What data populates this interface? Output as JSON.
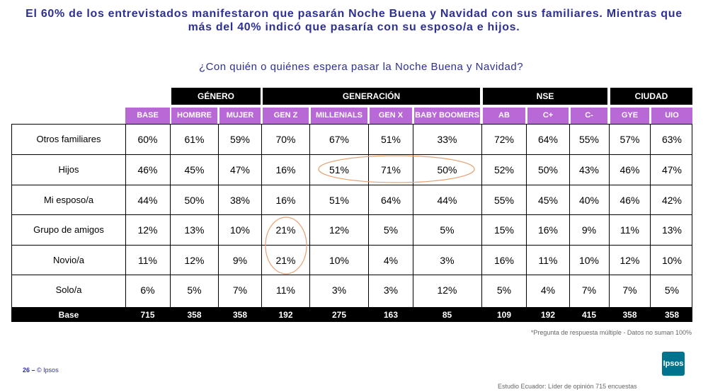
{
  "title": "El 60% de los entrevistados manifestaron que pasarán Noche Buena y Navidad con sus familiares. Mientras que más del 40% indicó que pasaría con su esposo/a e hijos.",
  "question": "¿Con quién o quiénes espera pasar la Noche Buena y Navidad?",
  "groups": [
    "GÉNERO",
    "GENERACIÓN",
    "NSE",
    "CIUDAD"
  ],
  "columns": [
    "BASE",
    "HOMBRE",
    "MUJER",
    "GEN Z",
    "MILLENIALS",
    "GEN X",
    "BABY BOOMERS",
    "AB",
    "C+",
    "C-",
    "GYE",
    "UIO"
  ],
  "rows": [
    {
      "label": "Otros familiares",
      "values": [
        "60%",
        "61%",
        "59%",
        "70%",
        "67%",
        "51%",
        "33%",
        "72%",
        "64%",
        "55%",
        "57%",
        "63%"
      ]
    },
    {
      "label": "Hijos",
      "values": [
        "46%",
        "45%",
        "47%",
        "16%",
        "51%",
        "71%",
        "50%",
        "52%",
        "50%",
        "43%",
        "46%",
        "47%"
      ]
    },
    {
      "label": "Mi esposo/a",
      "values": [
        "44%",
        "50%",
        "38%",
        "16%",
        "51%",
        "64%",
        "44%",
        "55%",
        "45%",
        "40%",
        "46%",
        "42%"
      ]
    },
    {
      "label": "Grupo de amigos",
      "values": [
        "12%",
        "13%",
        "10%",
        "21%",
        "12%",
        "5%",
        "5%",
        "15%",
        "16%",
        "9%",
        "11%",
        "13%"
      ]
    },
    {
      "label": "Novio/a",
      "values": [
        "11%",
        "12%",
        "9%",
        "21%",
        "10%",
        "4%",
        "3%",
        "16%",
        "11%",
        "10%",
        "12%",
        "10%"
      ]
    },
    {
      "label": "Solo/a",
      "values": [
        "6%",
        "5%",
        "7%",
        "11%",
        "3%",
        "3%",
        "12%",
        "5%",
        "4%",
        "7%",
        "7%",
        "5%"
      ]
    }
  ],
  "base_row": {
    "label": "Base",
    "values": [
      "715",
      "358",
      "358",
      "192",
      "275",
      "163",
      "85",
      "109",
      "192",
      "415",
      "358",
      "358"
    ]
  },
  "note": "*Pregunta de respuesta múltiple - Datos no suman 100%",
  "footer": {
    "page": "26 –",
    "copyright": "© Ipsos"
  },
  "study": "Estudio Ecuador: Líder de opinión 715 encuestas",
  "logo_text": "Ipsos",
  "colors": {
    "accent": "#2e3192",
    "header_purple": "#b869d6",
    "highlight_circle": "#e8a070",
    "logo": "#00738e"
  }
}
